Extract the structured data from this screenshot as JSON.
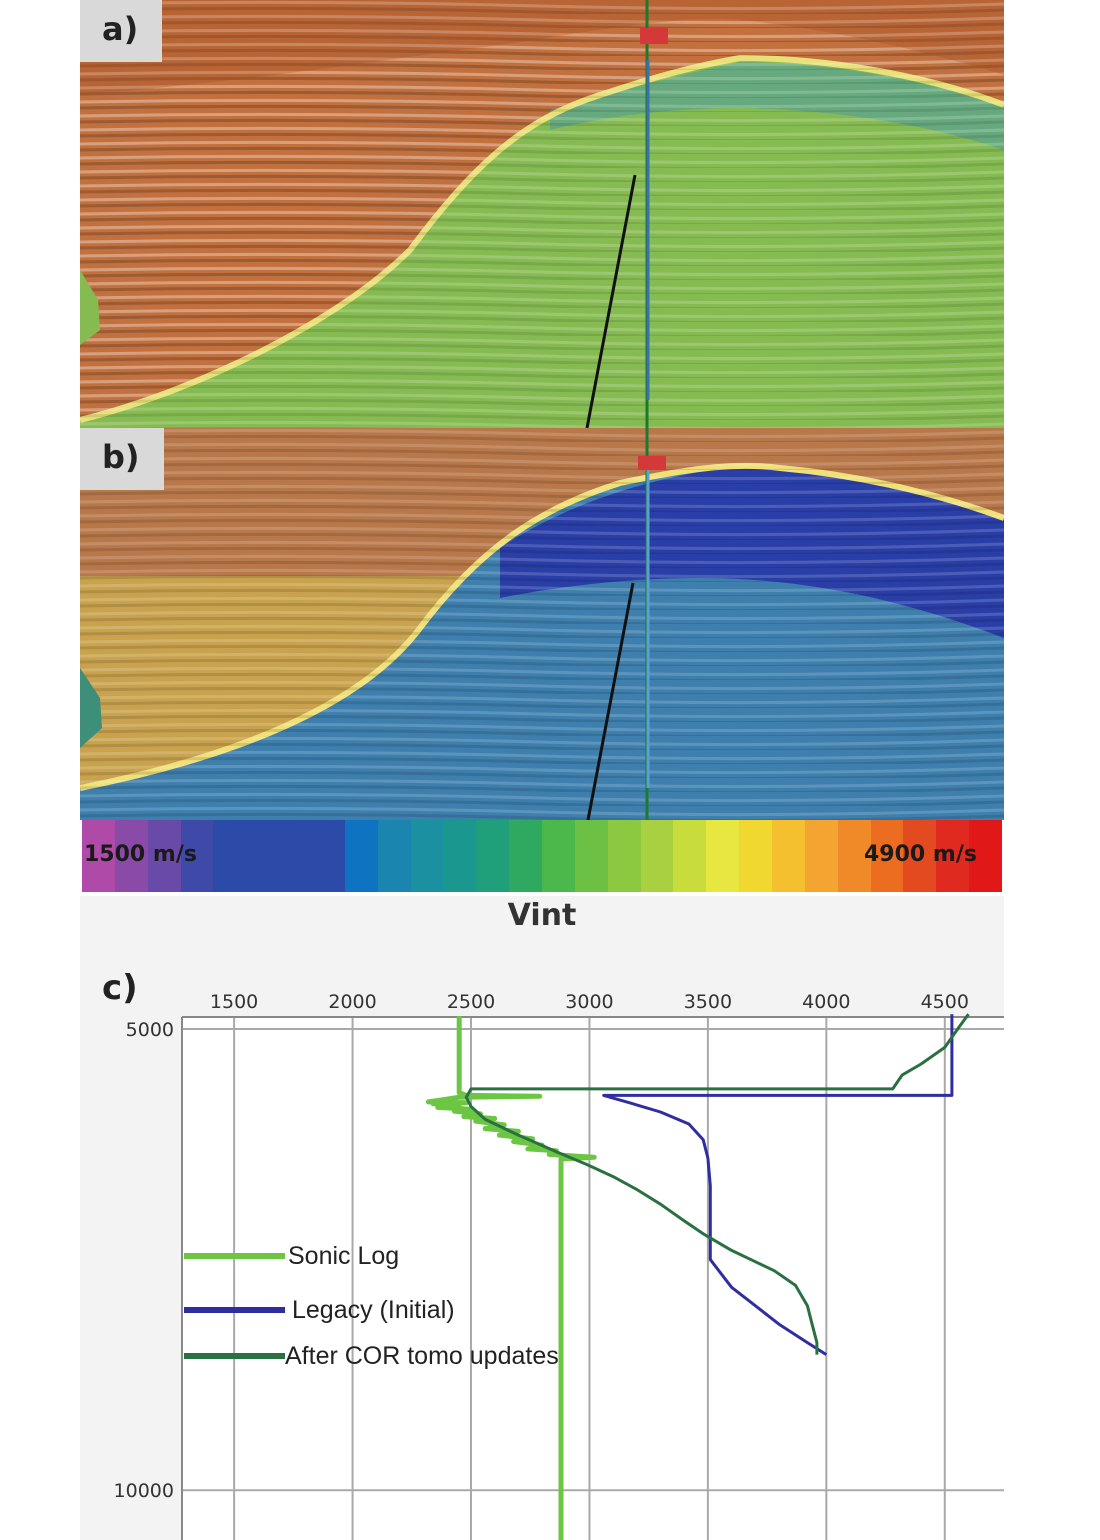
{
  "panels": {
    "a_label": "a)",
    "b_label": "b)"
  },
  "colorbar": {
    "min_label": "1500 m/s",
    "max_label": "4900 m/s",
    "colors": [
      "#b04aa8",
      "#8a4aa8",
      "#6a4aa8",
      "#3f4aa8",
      "#2c4aa8",
      "#2c4aa8",
      "#2c4aa8",
      "#2c4aa8",
      "#0e74c2",
      "#1a86b0",
      "#1a90a0",
      "#1a9890",
      "#20a07a",
      "#2fa860",
      "#4cb84c",
      "#6cc044",
      "#8cc840",
      "#a8d040",
      "#c8dc3c",
      "#e8e640",
      "#f0d830",
      "#f4c030",
      "#f4a430",
      "#f08a28",
      "#ec6c20",
      "#e44a20",
      "#e02a20",
      "#e01818"
    ]
  },
  "chart_data": {
    "type": "line",
    "title": "Vint",
    "panel_label": "c)",
    "x_ticks": [
      1500,
      2000,
      2500,
      3000,
      3500,
      4000,
      4500
    ],
    "y_ticks": [
      5000,
      10000
    ],
    "xlim": [
      1280,
      4750
    ],
    "ylim": [
      4870,
      10540
    ],
    "y_inverted": true,
    "grid": true,
    "legend_position": "left-middle",
    "series": [
      {
        "name": "Sonic Log",
        "color": "#6cc644",
        "width": 5,
        "points": [
          [
            2450,
            4860
          ],
          [
            2450,
            5690
          ],
          [
            2480,
            5720
          ],
          [
            2790,
            5730
          ],
          [
            2450,
            5740
          ],
          [
            2400,
            5760
          ],
          [
            2320,
            5790
          ],
          [
            2480,
            5800
          ],
          [
            2340,
            5810
          ],
          [
            2450,
            5830
          ],
          [
            2360,
            5850
          ],
          [
            2500,
            5870
          ],
          [
            2430,
            5890
          ],
          [
            2540,
            5920
          ],
          [
            2470,
            5950
          ],
          [
            2600,
            5970
          ],
          [
            2520,
            6000
          ],
          [
            2640,
            6040
          ],
          [
            2560,
            6080
          ],
          [
            2700,
            6110
          ],
          [
            2620,
            6150
          ],
          [
            2760,
            6190
          ],
          [
            2680,
            6220
          ],
          [
            2800,
            6260
          ],
          [
            2740,
            6300
          ],
          [
            2860,
            6320
          ],
          [
            2830,
            6360
          ],
          [
            2950,
            6380
          ],
          [
            3020,
            6390
          ],
          [
            2880,
            6410
          ],
          [
            2880,
            10540
          ]
        ]
      },
      {
        "name": "Legacy (Initial)",
        "color": "#2e2ea0",
        "width": 3,
        "points": [
          [
            4530,
            4840
          ],
          [
            4530,
            5720
          ],
          [
            3060,
            5720
          ],
          [
            3170,
            5800
          ],
          [
            3300,
            5900
          ],
          [
            3420,
            6030
          ],
          [
            3480,
            6200
          ],
          [
            3500,
            6400
          ],
          [
            3510,
            6700
          ],
          [
            3510,
            7000
          ],
          [
            3510,
            7300
          ],
          [
            3510,
            7500
          ],
          [
            3600,
            7800
          ],
          [
            3700,
            8000
          ],
          [
            3800,
            8200
          ],
          [
            3920,
            8400
          ],
          [
            4000,
            8530
          ]
        ]
      },
      {
        "name": "After COR tomo updates",
        "color": "#2a7040",
        "width": 3,
        "points": [
          [
            4600,
            4840
          ],
          [
            4560,
            4980
          ],
          [
            4500,
            5200
          ],
          [
            4400,
            5380
          ],
          [
            4320,
            5500
          ],
          [
            4280,
            5650
          ],
          [
            2500,
            5650
          ],
          [
            2480,
            5740
          ],
          [
            2500,
            5840
          ],
          [
            2560,
            5980
          ],
          [
            2700,
            6150
          ],
          [
            2860,
            6330
          ],
          [
            2990,
            6470
          ],
          [
            3100,
            6600
          ],
          [
            3200,
            6740
          ],
          [
            3300,
            6900
          ],
          [
            3400,
            7080
          ],
          [
            3480,
            7220
          ],
          [
            3600,
            7400
          ],
          [
            3780,
            7620
          ],
          [
            3870,
            7780
          ],
          [
            3920,
            8000
          ],
          [
            3940,
            8200
          ],
          [
            3960,
            8400
          ],
          [
            3960,
            8530
          ]
        ]
      }
    ]
  }
}
